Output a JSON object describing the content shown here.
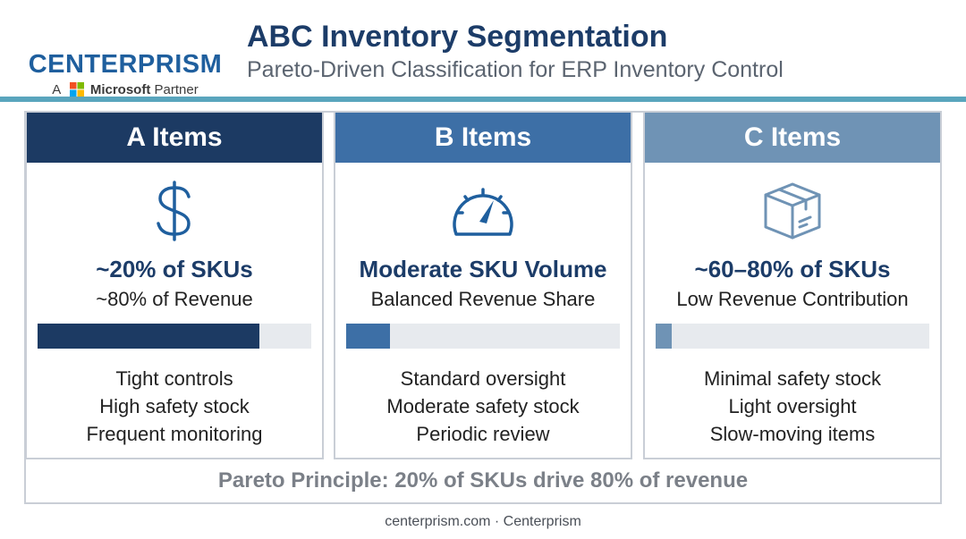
{
  "logo": {
    "wordmark": "CENTERPRISM",
    "prefix": "A",
    "partner_brand": "Microsoft",
    "partner_suffix": "Partner"
  },
  "header": {
    "title": "ABC Inventory Segmentation",
    "subtitle": "Pareto-Driven Classification for ERP Inventory Control"
  },
  "colors": {
    "a": "#1c3a63",
    "b": "#3d6fa6",
    "c": "#6f93b5",
    "rule": "#5aa5bd"
  },
  "columns": [
    {
      "title": "A Items",
      "icon": "dollar-icon",
      "stat": "~20% of SKUs",
      "stat2": "~80% of Revenue",
      "bar_fraction": 0.81,
      "points": [
        "Tight controls",
        "High safety stock",
        "Frequent monitoring"
      ]
    },
    {
      "title": "B Items",
      "icon": "gauge-icon",
      "stat": "Moderate SKU Volume",
      "stat2": "Balanced Revenue Share",
      "bar_fraction": 0.16,
      "points": [
        "Standard oversight",
        "Moderate safety stock",
        "Periodic review"
      ]
    },
    {
      "title": "C Items",
      "icon": "box-icon",
      "stat": "~60–80% of SKUs",
      "stat2": "Low Revenue Contribution",
      "bar_fraction": 0.06,
      "points": [
        "Minimal safety stock",
        "Light oversight",
        "Slow-moving items"
      ]
    }
  ],
  "footer": {
    "principle": "Pareto Principle: 20% of SKUs drive 80% of revenue",
    "credit": "centerprism.com · Centerprism"
  }
}
